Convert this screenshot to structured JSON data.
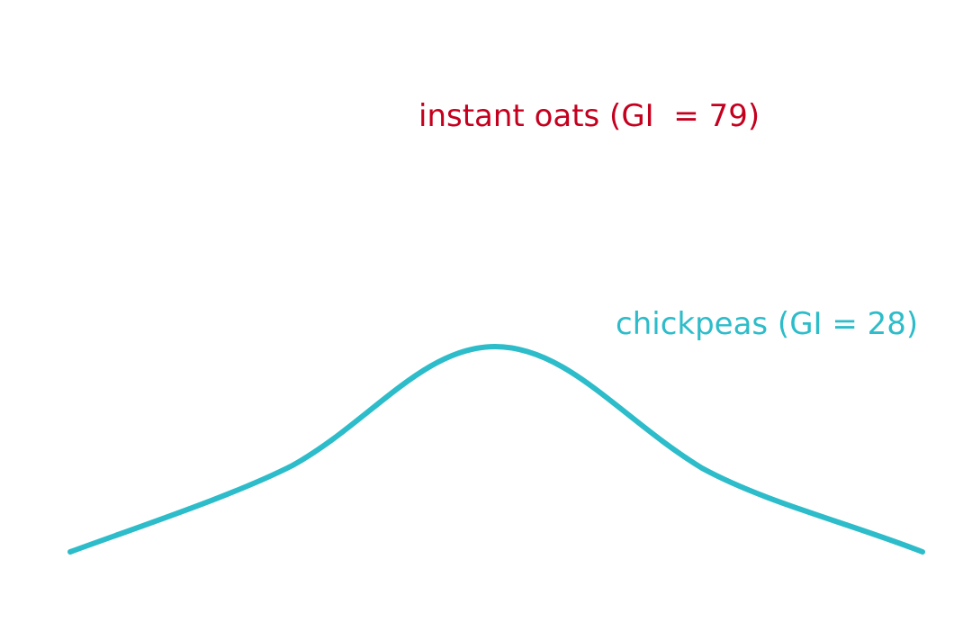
{
  "labels": {
    "oats": "instant oats (GI  = 79)",
    "chickpeas": "chickpeas (GI = 28)"
  }
}
